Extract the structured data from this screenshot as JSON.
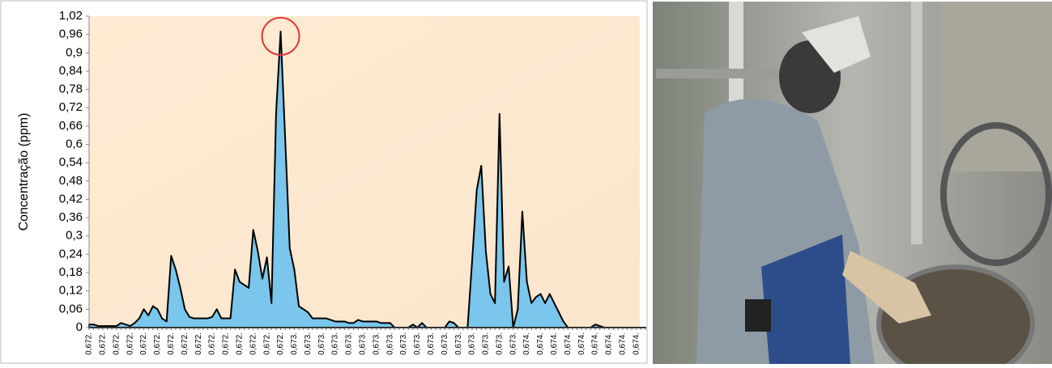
{
  "chart_data": {
    "type": "area",
    "ylabel": "Concentração (ppm)",
    "categories": [
      "0,672.",
      null,
      null,
      "0,672.",
      null,
      null,
      "0,672.",
      null,
      null,
      "0,672.",
      null,
      null,
      "0,672.",
      null,
      null,
      "0,672.",
      null,
      null,
      "0,672.",
      null,
      null,
      "0,672.",
      null,
      null,
      "0,672.",
      null,
      null,
      "0,672.",
      null,
      null,
      "0,672.",
      null,
      null,
      "0,672.",
      null,
      null,
      "0,672.",
      null,
      null,
      "0,672.",
      null,
      null,
      "0,672.",
      null,
      null,
      "0,673.",
      null,
      null,
      "0,673.",
      null,
      null,
      "0,673.",
      null,
      null,
      "0,673.",
      null,
      null,
      "0,673.",
      null,
      null,
      "0,673.",
      null,
      null,
      "0,673.",
      null,
      null,
      "0,673.",
      null,
      null,
      "0,673.",
      null,
      null,
      "0,673.",
      null,
      null,
      "0,673.",
      null,
      null,
      "0,673.",
      null,
      null,
      "0,673.",
      null,
      null,
      "0,673.",
      null,
      null,
      "0,673.",
      null,
      null,
      "0,673.",
      null,
      null,
      "0,673.",
      null,
      null,
      "0,674.",
      null,
      null,
      "0,674.",
      null,
      null,
      "0,674.",
      null,
      null,
      "0,674.",
      null,
      null,
      "0,674.",
      null,
      null,
      "0,674.",
      null,
      null,
      "0,674.",
      null,
      null,
      "0,674.",
      null,
      null,
      "0,674.",
      null,
      null
    ],
    "values": [
      0.01,
      0.01,
      0.005,
      0.005,
      0.005,
      0.005,
      0.005,
      0.015,
      0.01,
      0.005,
      0.015,
      0.03,
      0.06,
      0.04,
      0.07,
      0.06,
      0.03,
      0.02,
      0.235,
      0.19,
      0.13,
      0.06,
      0.035,
      0.03,
      0.03,
      0.03,
      0.03,
      0.035,
      0.06,
      0.03,
      0.03,
      0.03,
      0.19,
      0.15,
      0.14,
      0.13,
      0.32,
      0.25,
      0.16,
      0.23,
      0.08,
      0.7,
      0.97,
      0.62,
      0.26,
      0.19,
      0.07,
      0.06,
      0.05,
      0.03,
      0.03,
      0.03,
      0.03,
      0.025,
      0.02,
      0.02,
      0.02,
      0.015,
      0.015,
      0.025,
      0.02,
      0.02,
      0.02,
      0.02,
      0.015,
      0.015,
      0.015,
      0,
      0,
      0,
      0,
      0.01,
      0,
      0.015,
      0,
      0,
      0,
      0,
      0,
      0.02,
      0.015,
      0,
      0,
      0,
      0.22,
      0.45,
      0.53,
      0.25,
      0.11,
      0.08,
      0.7,
      0.15,
      0.2,
      0,
      0.06,
      0.38,
      0.15,
      0.08,
      0.1,
      0.11,
      0.08,
      0.11,
      0.08,
      0.05,
      0.02,
      0,
      0,
      0,
      0,
      0,
      0,
      0.01,
      0.005,
      0,
      0,
      0,
      0,
      0,
      0,
      0,
      0,
      0,
      0
    ],
    "color": "#7ac6ec",
    "ylim": [
      0,
      1.02
    ],
    "yticks": [
      0,
      {
        "value": 0.06,
        "label": "0,06"
      },
      {
        "value": 0.12,
        "label": "0,12"
      },
      {
        "value": 0.18,
        "label": "0,18"
      },
      {
        "value": 0.24,
        "label": "0,24"
      },
      {
        "value": 0.3,
        "label": "0,3"
      },
      {
        "value": 0.36,
        "label": "0,36"
      },
      {
        "value": 0.42,
        "label": "0,42"
      },
      {
        "value": 0.48,
        "label": "0,48"
      },
      {
        "value": 0.54,
        "label": "0,54"
      },
      {
        "value": 0.6,
        "label": "0,6"
      },
      {
        "value": 0.66,
        "label": "0,66"
      },
      {
        "value": 0.72,
        "label": "0,72"
      },
      {
        "value": 0.78,
        "label": "0,78"
      },
      {
        "value": 0.84,
        "label": "0,84"
      },
      {
        "value": 0.9,
        "label": "0,9"
      },
      {
        "value": 0.96,
        "label": "0,96"
      },
      {
        "value": 1.02,
        "label": "1,02"
      }
    ]
  }
}
